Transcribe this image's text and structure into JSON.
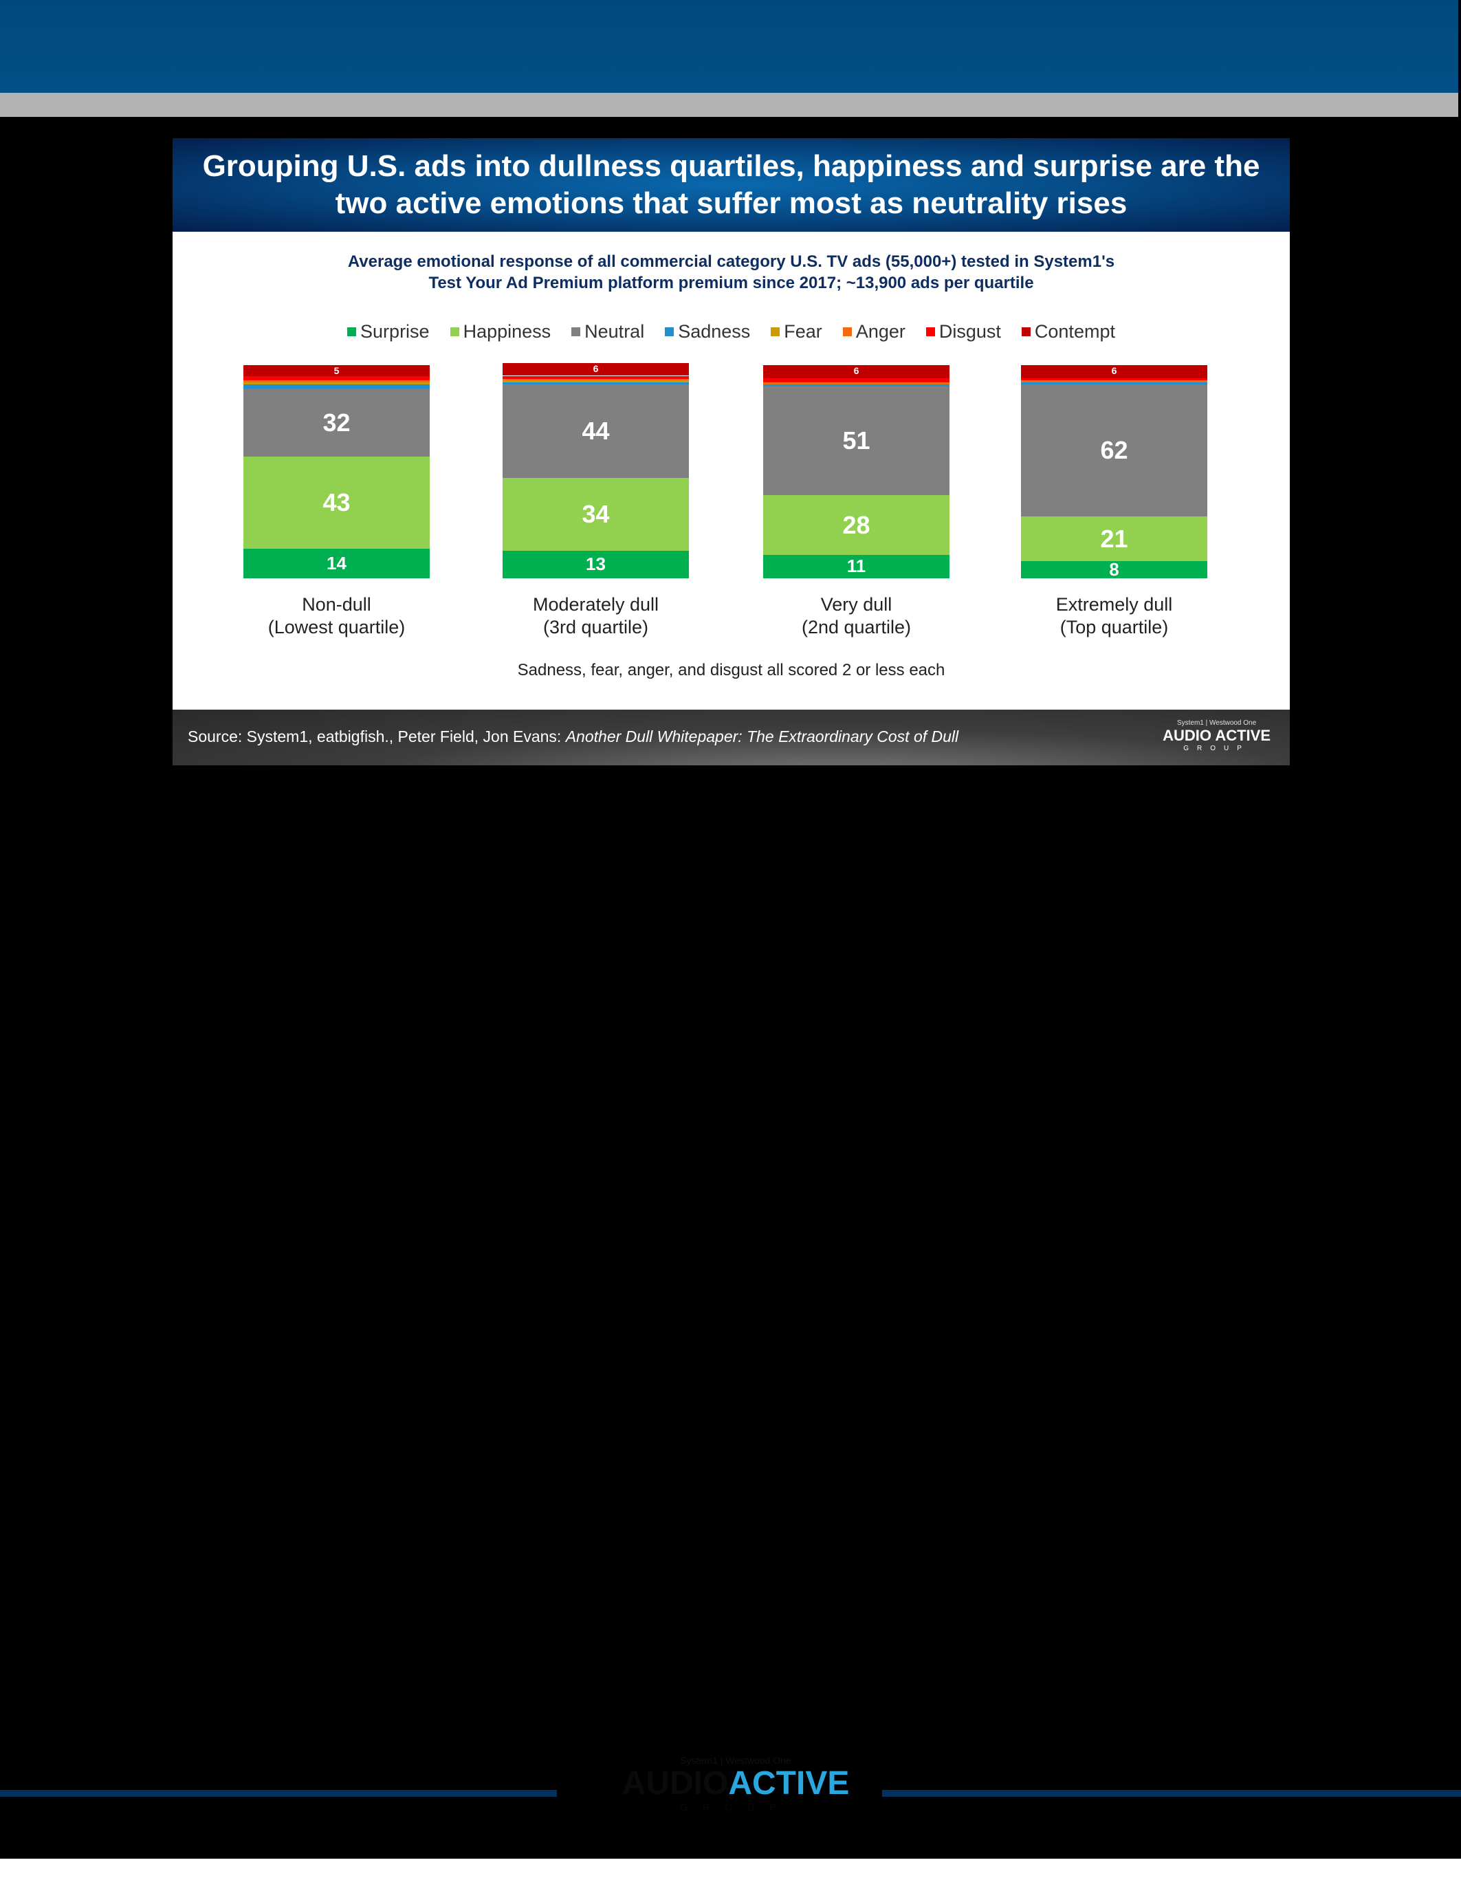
{
  "title": "Grouping U.S. ads into dullness quartiles, happiness and surprise are the two active emotions that suffer most as neutrality rises",
  "chart_data": {
    "type": "bar",
    "stacked": true,
    "subtitle_line1": "Average emotional response of all commercial category U.S. TV ads (55,000+) tested in System1's",
    "subtitle_line2": "Test Your Ad Premium platform premium since 2017; ~13,900 ads per quartile",
    "categories": [
      {
        "line1": "Non-dull",
        "line2": "(Lowest quartile)"
      },
      {
        "line1": "Moderately dull",
        "line2": "(3rd quartile)"
      },
      {
        "line1": "Very dull",
        "line2": "(2nd quartile)"
      },
      {
        "line1": "Extremely dull",
        "line2": "(Top quartile)"
      }
    ],
    "series": [
      {
        "name": "Surprise",
        "color": "#00b050",
        "values": [
          14,
          13,
          11,
          8
        ],
        "labeled": true
      },
      {
        "name": "Happiness",
        "color": "#92d050",
        "values": [
          43,
          34,
          28,
          21
        ],
        "labeled": true
      },
      {
        "name": "Neutral",
        "color": "#808080",
        "values": [
          32,
          44,
          51,
          62
        ],
        "labeled": true
      },
      {
        "name": "Sadness",
        "color": "#238fcf",
        "values": [
          2,
          1,
          1,
          1
        ],
        "labeled": false
      },
      {
        "name": "Fear",
        "color": "#cc9a06",
        "values": [
          1,
          1,
          0,
          0
        ],
        "labeled": false
      },
      {
        "name": "Anger",
        "color": "#f26b10",
        "values": [
          1,
          0.5,
          1,
          1
        ],
        "labeled": false
      },
      {
        "name": "Disgust",
        "color": "#ff0000",
        "values": [
          2,
          1.5,
          2,
          1
        ],
        "labeled": false
      },
      {
        "name": "Contempt",
        "color": "#c00000",
        "values": [
          5,
          6,
          6,
          6
        ],
        "labeled": true
      }
    ],
    "ylim": [
      0,
      100
    ],
    "grid": false,
    "legend_position": "top",
    "note": "Sadness, fear, anger, and disgust all scored 2 or less each"
  },
  "footer": {
    "source_prefix": "Source: System1, eatbigfish., Peter Field, Jon Evans: ",
    "source_italic": "Another Dull  Whitepaper: The Extraordinary Cost of Dull",
    "logo_top": "System1 | Westwood One",
    "logo_main": "AUDIO ACTIVE",
    "logo_group": "GROUP"
  },
  "bottom_logo": {
    "top": "System1 | Westwood One",
    "audio": "AUDIO",
    "active": "ACTIVE",
    "group": "GROUP"
  }
}
